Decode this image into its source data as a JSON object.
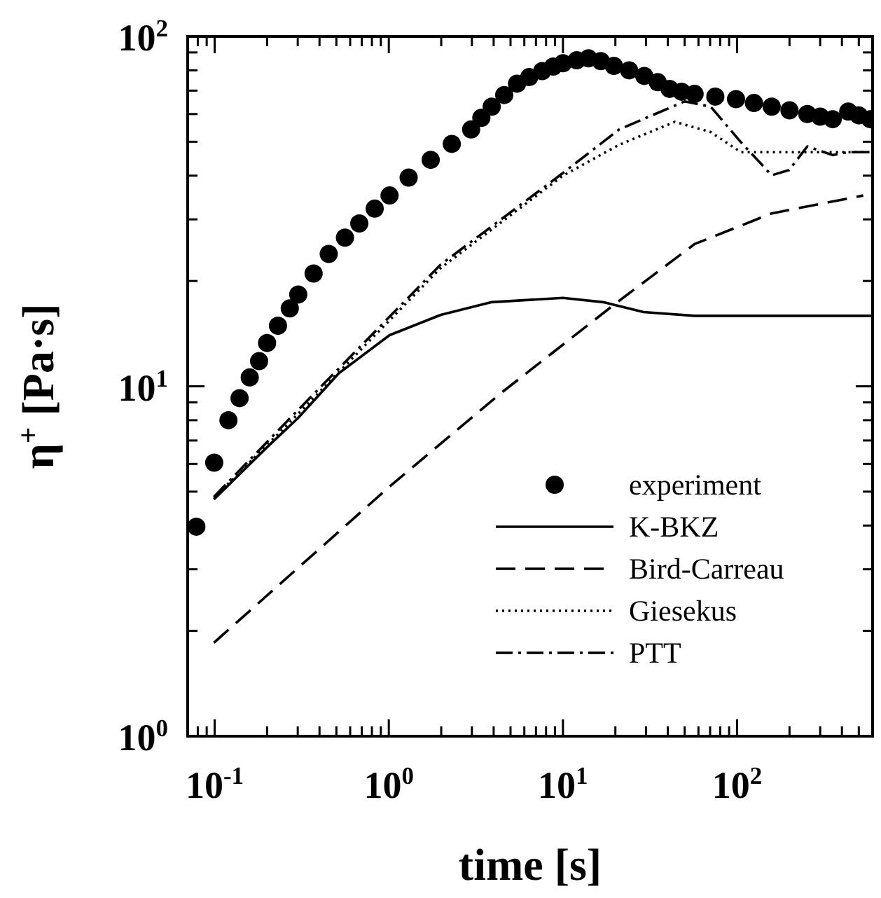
{
  "chart_data": {
    "type": "line",
    "xlabel": "time [s]",
    "ylabel": "η$^{+}$ [Pa·s]",
    "log": "xy",
    "grid": false,
    "legend": "bottom right",
    "xlim": [
      0.07,
      600
    ],
    "ylim": [
      1,
      100
    ],
    "xticks": [
      {
        "value": 0.08,
        "label": null
      },
      {
        "value": 0.09,
        "label": null
      },
      {
        "value": 0.1,
        "label": "10$^{-1}$"
      },
      {
        "value": 0.2,
        "label": null
      },
      {
        "value": 0.3,
        "label": null
      },
      {
        "value": 0.4,
        "label": null
      },
      {
        "value": 0.5,
        "label": null
      },
      {
        "value": 0.6,
        "label": null
      },
      {
        "value": 0.7,
        "label": null
      },
      {
        "value": 0.8,
        "label": null
      },
      {
        "value": 0.9,
        "label": null
      },
      {
        "value": 1,
        "label": "10$^{0}$"
      },
      {
        "value": 2,
        "label": null
      },
      {
        "value": 3,
        "label": null
      },
      {
        "value": 4,
        "label": null
      },
      {
        "value": 5,
        "label": null
      },
      {
        "value": 6,
        "label": null
      },
      {
        "value": 7,
        "label": null
      },
      {
        "value": 8,
        "label": null
      },
      {
        "value": 9,
        "label": null
      },
      {
        "value": 10,
        "label": "10$^{1}$"
      },
      {
        "value": 20,
        "label": null
      },
      {
        "value": 30,
        "label": null
      },
      {
        "value": 40,
        "label": null
      },
      {
        "value": 50,
        "label": null
      },
      {
        "value": 60,
        "label": null
      },
      {
        "value": 70,
        "label": null
      },
      {
        "value": 80,
        "label": null
      },
      {
        "value": 90,
        "label": null
      },
      {
        "value": 100,
        "label": "10$^{2}$"
      },
      {
        "value": 200,
        "label": null
      },
      {
        "value": 300,
        "label": null
      },
      {
        "value": 400,
        "label": null
      },
      {
        "value": 500,
        "label": null
      },
      {
        "value": 600,
        "label": null
      }
    ],
    "yticks": [
      {
        "value": 1,
        "label": "10$^{0}$"
      },
      {
        "value": 2,
        "label": null
      },
      {
        "value": 3,
        "label": null
      },
      {
        "value": 4,
        "label": null
      },
      {
        "value": 5,
        "label": null
      },
      {
        "value": 6,
        "label": null
      },
      {
        "value": 7,
        "label": null
      },
      {
        "value": 8,
        "label": null
      },
      {
        "value": 9,
        "label": null
      },
      {
        "value": 10,
        "label": "10$^{1}$"
      },
      {
        "value": 20,
        "label": null
      },
      {
        "value": 30,
        "label": null
      },
      {
        "value": 40,
        "label": null
      },
      {
        "value": 50,
        "label": null
      },
      {
        "value": 60,
        "label": null
      },
      {
        "value": 70,
        "label": null
      },
      {
        "value": 80,
        "label": null
      },
      {
        "value": 90,
        "label": null
      },
      {
        "value": 100,
        "label": "10$^{2}$"
      }
    ],
    "series": [
      {
        "name": "experiment",
        "type": "scatter",
        "marker": "circle",
        "color": "#000000",
        "x": [
          0.0785,
          0.0994,
          0.12,
          0.139,
          0.159,
          0.18,
          0.2,
          0.231,
          0.27,
          0.302,
          0.37,
          0.452,
          0.56,
          0.677,
          0.83,
          1.01,
          1.3,
          1.74,
          2.3,
          2.97,
          3.4,
          3.9,
          4.6,
          5.45,
          6.4,
          7.6,
          8.8,
          10,
          12,
          14,
          16.5,
          19.6,
          24,
          29.3,
          35,
          41,
          48,
          57,
          75,
          98.6,
          125,
          158,
          200,
          253,
          300,
          354,
          435,
          500,
          582
        ],
        "values": [
          3.97,
          6.05,
          8.0,
          9.25,
          10.6,
          11.8,
          13.3,
          14.9,
          16.7,
          18.3,
          21,
          23.9,
          26.6,
          29.2,
          32.2,
          35.1,
          39.5,
          44.4,
          49.3,
          54.2,
          58.5,
          63,
          68,
          73.3,
          76.5,
          79.6,
          82,
          83.8,
          85.5,
          86.6,
          85,
          82.4,
          80,
          77.1,
          74,
          70.8,
          69.5,
          68.5,
          67.3,
          66.2,
          64.5,
          63,
          61.5,
          60,
          59,
          58,
          61,
          59.5,
          58
        ]
      },
      {
        "name": "K-BKZ",
        "color": "#000000",
        "line_style": "solid",
        "x": [
          0.099,
          0.2,
          0.3,
          0.517,
          1.01,
          1.99,
          3.9,
          10,
          17,
          29,
          57,
          600
        ],
        "values": [
          4.75,
          6.7,
          8.1,
          10.9,
          14.0,
          16.0,
          17.4,
          17.9,
          17.4,
          16.3,
          15.9,
          15.9
        ]
      },
      {
        "name": "Bird-Carreau",
        "color": "#000000",
        "line_style": "dashed",
        "x": [
          0.099,
          1.01,
          4.45,
          19.6,
          57,
          158,
          530
        ],
        "values": [
          1.85,
          5.17,
          9.6,
          17.1,
          25.5,
          31.2,
          35.1
        ]
      },
      {
        "name": "Giesekus",
        "color": "#000000",
        "line_style": "dotted",
        "x": [
          0.099,
          0.264,
          1.99,
          10,
          21,
          44,
          70.5,
          105,
          130,
          600
        ],
        "values": [
          4.8,
          7.8,
          21.8,
          40,
          49,
          57,
          53.3,
          46.7,
          46.7,
          46.7
        ]
      },
      {
        "name": "PTT",
        "color": "#000000",
        "line_style": "dashdot",
        "x": [
          0.099,
          0.264,
          1.99,
          10,
          21,
          50,
          70.5,
          105,
          158,
          199,
          253,
          354,
          435,
          600
        ],
        "values": [
          4.83,
          8.0,
          22.3,
          40.7,
          54.2,
          65.2,
          63,
          49.9,
          40.1,
          41.5,
          48.5,
          45.8,
          46.7,
          46.7
        ]
      }
    ]
  }
}
